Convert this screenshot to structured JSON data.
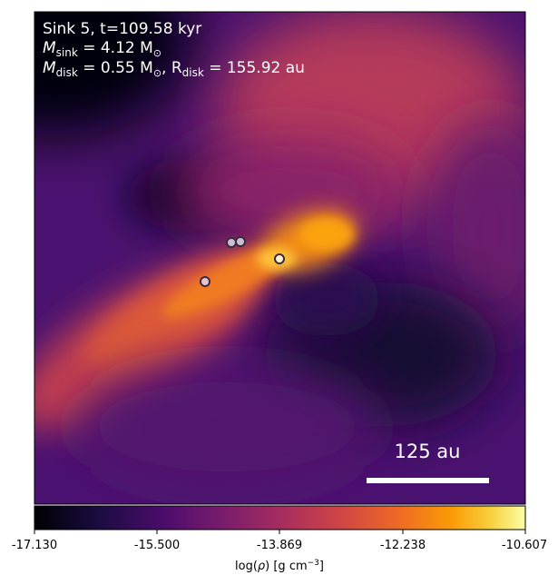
{
  "panel": {
    "line1": "Sink 5, t=109.58 kyr",
    "line2_prefix": "M",
    "line2_sub": "sink",
    "line2_value": " = 4.12 M",
    "line2_sun": "⊙",
    "line3_prefix": "M",
    "line3_sub": "disk",
    "line3_value": " = 0.55 M",
    "line3_sun": "⊙",
    "line3_sep": ", R",
    "line3_sub2": "disk",
    "line3_value2": " = 155.92 au"
  },
  "scale_bar": {
    "label": "125 au"
  },
  "colorbar": {
    "ticks": [
      "-17.130",
      "-15.500",
      "-13.869",
      "-12.238",
      "-10.607"
    ],
    "label_prefix": "log(",
    "label_rho": "ρ",
    "label_suffix": ") [g cm",
    "label_exp": "−3",
    "label_close": "]",
    "colormap": "inferno"
  },
  "sinks": [
    {
      "id": "sink-a"
    },
    {
      "id": "sink-b"
    },
    {
      "id": "sink-c"
    },
    {
      "id": "sink-d"
    }
  ]
}
